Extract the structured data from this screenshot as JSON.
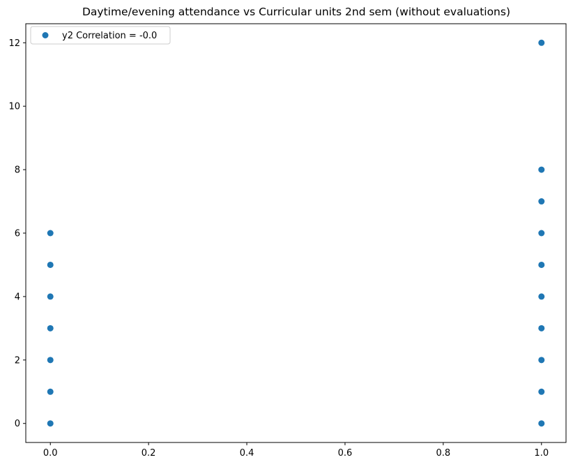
{
  "chart_data": {
    "type": "scatter",
    "title": "Daytime/evening attendance\t vs Curricular units 2nd sem (without evaluations)",
    "xlabel": "",
    "ylabel": "",
    "xlim": [
      -0.05,
      1.05
    ],
    "ylim": [
      -0.6,
      12.6
    ],
    "xticks": [
      0.0,
      0.2,
      0.4,
      0.6,
      0.8,
      1.0
    ],
    "xtick_labels": [
      "0.0",
      "0.2",
      "0.4",
      "0.6",
      "0.8",
      "1.0"
    ],
    "yticks": [
      0,
      2,
      4,
      6,
      8,
      10,
      12
    ],
    "ytick_labels": [
      "0",
      "2",
      "4",
      "6",
      "8",
      "10",
      "12"
    ],
    "grid": false,
    "legend": {
      "position": "top-left"
    },
    "series": [
      {
        "name": "y2 Correlation = -0.0",
        "color": "#1f77b4",
        "points": [
          [
            0,
            0
          ],
          [
            0,
            1
          ],
          [
            0,
            2
          ],
          [
            0,
            3
          ],
          [
            0,
            4
          ],
          [
            0,
            5
          ],
          [
            0,
            6
          ],
          [
            1,
            0
          ],
          [
            1,
            1
          ],
          [
            1,
            2
          ],
          [
            1,
            3
          ],
          [
            1,
            4
          ],
          [
            1,
            5
          ],
          [
            1,
            6
          ],
          [
            1,
            7
          ],
          [
            1,
            8
          ],
          [
            1,
            12
          ]
        ]
      }
    ]
  }
}
